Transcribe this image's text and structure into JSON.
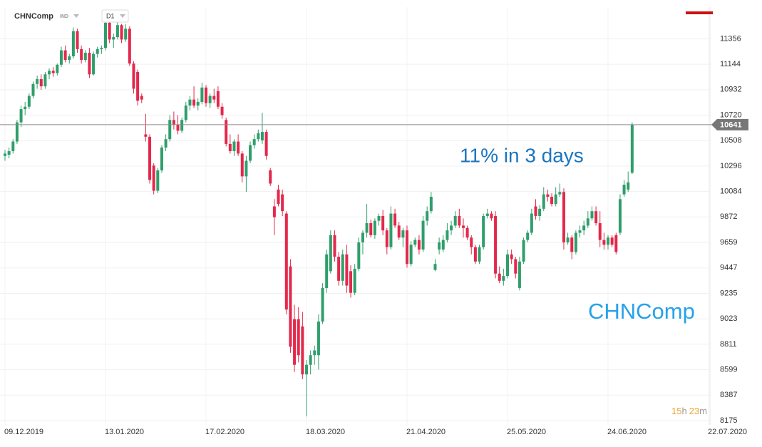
{
  "chart_data": {
    "type": "candlestick",
    "symbol": "CHNComp",
    "market": "IND",
    "timeframe": "D1",
    "annotation": "11% in 3 days",
    "watermark": "CHNComp",
    "timer_parts": [
      "15",
      "h",
      "23",
      "m"
    ],
    "last_price": 10641,
    "up_color": "#2f9e6b",
    "down_color": "#e3284b",
    "grid": true,
    "ylim": [
      8163,
      11620
    ],
    "yticks": [
      8175,
      8387,
      8599,
      8811,
      9023,
      9235,
      9447,
      9659,
      9872,
      10084,
      10296,
      10508,
      10720,
      10932,
      11144,
      11356
    ],
    "categories": [
      "09.12.2019",
      null,
      null,
      null,
      null,
      null,
      null,
      null,
      null,
      null,
      null,
      null,
      null,
      null,
      null,
      null,
      null,
      null,
      null,
      null,
      null,
      null,
      null,
      null,
      null,
      "13.01.2020",
      null,
      null,
      null,
      null,
      null,
      null,
      null,
      null,
      null,
      null,
      null,
      null,
      null,
      null,
      null,
      null,
      null,
      null,
      null,
      null,
      null,
      null,
      null,
      null,
      "17.02.2020",
      null,
      null,
      null,
      null,
      null,
      null,
      null,
      null,
      null,
      null,
      null,
      null,
      null,
      null,
      null,
      null,
      null,
      null,
      null,
      null,
      null,
      null,
      null,
      null,
      "18.03.2020",
      null,
      null,
      null,
      null,
      null,
      null,
      null,
      null,
      null,
      null,
      null,
      null,
      null,
      null,
      null,
      null,
      null,
      null,
      null,
      null,
      null,
      null,
      null,
      null,
      "21.04.2020",
      null,
      null,
      null,
      null,
      null,
      null,
      null,
      null,
      null,
      null,
      null,
      null,
      null,
      null,
      null,
      null,
      null,
      null,
      null,
      null,
      null,
      null,
      null,
      null,
      "25.05.2020",
      null,
      null,
      null,
      null,
      null,
      null,
      null,
      null,
      null,
      null,
      null,
      null,
      null,
      null,
      null,
      null,
      null,
      null,
      null,
      null,
      null,
      null,
      null,
      null,
      "24.06.2020",
      null,
      null,
      null,
      null,
      null,
      null,
      null,
      null,
      null,
      null,
      null,
      null,
      null,
      null,
      null,
      null,
      null,
      null,
      null,
      null,
      null,
      null,
      null,
      null,
      "22.07.2020"
    ],
    "open": [
      10380,
      10390,
      10420,
      10500,
      10660,
      10770,
      10790,
      10880,
      10980,
      11020,
      10960,
      11060,
      11090,
      11070,
      11140,
      11260,
      11180,
      11210,
      11420,
      11270,
      11180,
      11240,
      11060,
      11230,
      11270,
      11280,
      11490,
      11350,
      11370,
      11470,
      11350,
      11440,
      11150,
      11080,
      10880,
      10560,
      10540,
      10300,
      10090,
      10260,
      10450,
      10520,
      10680,
      10640,
      10590,
      10680,
      10800,
      10850,
      10800,
      10830,
      10950,
      10820,
      10880,
      10920,
      10790,
      10680,
      10480,
      10420,
      10500,
      10400,
      10210,
      10340,
      10470,
      10520,
      10510,
      10580,
      10260,
      9960,
      10100,
      10060,
      9900,
      9460,
      9020,
      9020,
      8960,
      8560,
      8640,
      8720,
      8720,
      9000,
      9280,
      9420,
      9720,
      9540,
      9340,
      9560,
      9420,
      9240,
      9440,
      9660,
      9740,
      9820,
      9720,
      9840,
      9880,
      9760,
      9620,
      9900,
      9800,
      9700,
      9760,
      9480,
      9640,
      9680,
      9600,
      9840,
      9920,
      9430,
      9600,
      9600,
      9680,
      9760,
      9800,
      9880,
      9800,
      9780,
      9700,
      9620,
      9500,
      9620,
      9880,
      9900,
      9880,
      9400,
      9340,
      9380,
      9560,
      9520,
      9280,
      9500,
      9680,
      9740,
      9960,
      9880,
      9940,
      10060,
      10040,
      9980,
      10060,
      10080,
      9660,
      9700,
      9580,
      9740,
      9760,
      9800,
      9860,
      9920,
      9820,
      9680,
      9640,
      9700,
      9720,
      9740,
      10060,
      10100,
      10240,
      null,
      null,
      null,
      null,
      null,
      null,
      null,
      null,
      null,
      null,
      null,
      null,
      null,
      null,
      null,
      null,
      null,
      null,
      null
    ],
    "high": [
      10430,
      10450,
      10520,
      10680,
      10800,
      10830,
      10900,
      11000,
      11050,
      11060,
      11080,
      11110,
      11120,
      11150,
      11290,
      11300,
      11230,
      11450,
      11440,
      11300,
      11260,
      11280,
      11250,
      11290,
      11300,
      11530,
      11520,
      11400,
      11500,
      11480,
      11480,
      11460,
      11170,
      11100,
      10900,
      10730,
      10560,
      10320,
      10280,
      10470,
      10560,
      10720,
      10750,
      10720,
      10700,
      10830,
      10880,
      10960,
      10860,
      10990,
      10970,
      10900,
      10940,
      10960,
      10820,
      10700,
      10560,
      10520,
      10560,
      10420,
      10380,
      10500,
      10560,
      10600,
      10740,
      10600,
      10280,
      10020,
      10140,
      10100,
      9920,
      9520,
      9140,
      9120,
      9080,
      8680,
      8760,
      8800,
      9060,
      9320,
      9600,
      9760,
      9760,
      9580,
      9600,
      9640,
      9470,
      9480,
      9700,
      9760,
      9980,
      9850,
      9860,
      9900,
      9930,
      9780,
      9960,
      9940,
      9830,
      9780,
      9800,
      9670,
      9700,
      9720,
      9880,
      9960,
      10080,
      9520,
      9700,
      9720,
      9820,
      9840,
      9920,
      9940,
      9860,
      9800,
      9720,
      9640,
      9640,
      9900,
      9940,
      9920,
      9920,
      9460,
      9440,
      9600,
      9600,
      9540,
      9540,
      9700,
      9760,
      9940,
      10020,
      9970,
      10120,
      10100,
      10070,
      10120,
      10150,
      10110,
      9740,
      9720,
      9760,
      9800,
      9840,
      9920,
      9960,
      9960,
      9920,
      9740,
      9720,
      9720,
      9740,
      10060,
      10180,
      10250,
      10660,
      null,
      null,
      null,
      null,
      null,
      null,
      null,
      null,
      null,
      null,
      null,
      null,
      null,
      null,
      null,
      null,
      null,
      null,
      null
    ],
    "low": [
      10340,
      10360,
      10400,
      10480,
      10620,
      10720,
      10770,
      10860,
      10940,
      10930,
      10940,
      11020,
      11040,
      11050,
      11120,
      11160,
      11150,
      11190,
      11240,
      11150,
      11160,
      11030,
      11050,
      11200,
      11230,
      11260,
      11320,
      11280,
      11350,
      11320,
      11330,
      11130,
      10900,
      10800,
      10820,
      10500,
      10150,
      10060,
      10070,
      10240,
      10420,
      10500,
      10600,
      10560,
      10570,
      10660,
      10760,
      10780,
      10760,
      10810,
      10790,
      10780,
      10820,
      10770,
      10690,
      10460,
      10400,
      10380,
      10380,
      10160,
      10080,
      10320,
      10440,
      10500,
      10480,
      10350,
      10130,
      9720,
      9960,
      9880,
      9060,
      8740,
      8580,
      8660,
      8520,
      8210,
      8560,
      8640,
      8600,
      8980,
      9240,
      9400,
      9500,
      9300,
      9300,
      9240,
      9200,
      9220,
      9420,
      9560,
      9700,
      9700,
      9690,
      9800,
      9720,
      9560,
      9600,
      9780,
      9680,
      9620,
      9450,
      9460,
      9620,
      9560,
      9580,
      9800,
      9900,
      9420,
      9560,
      9580,
      9660,
      9720,
      9780,
      9780,
      9700,
      9680,
      9560,
      9480,
      9480,
      9600,
      9860,
      9840,
      9360,
      9320,
      9300,
      9360,
      9480,
      9360,
      9260,
      9480,
      9660,
      9720,
      9850,
      9840,
      9920,
      10000,
      9960,
      9960,
      10040,
      9600,
      9640,
      9520,
      9560,
      9700,
      9720,
      9780,
      9840,
      9800,
      9620,
      9600,
      9600,
      9620,
      9560,
      9720,
      10040,
      10080,
      10230,
      null,
      null,
      null,
      null,
      null,
      null,
      null,
      null,
      null,
      null,
      null,
      null,
      null,
      null,
      null,
      null,
      null,
      null,
      null
    ],
    "close": [
      10400,
      10420,
      10500,
      10660,
      10770,
      10790,
      10880,
      10980,
      11020,
      10960,
      11060,
      11090,
      11070,
      11140,
      11260,
      11180,
      11210,
      11420,
      11270,
      11180,
      11240,
      11060,
      11230,
      11270,
      11280,
      11490,
      11350,
      11370,
      11470,
      11350,
      11440,
      11150,
      10940,
      10840,
      10850,
      10540,
      10180,
      10090,
      10260,
      10450,
      10520,
      10680,
      10640,
      10590,
      10680,
      10800,
      10850,
      10800,
      10830,
      10950,
      10820,
      10880,
      10850,
      10790,
      10720,
      10480,
      10420,
      10500,
      10400,
      10210,
      10340,
      10470,
      10520,
      10570,
      10580,
      10380,
      10150,
      9870,
      9980,
      9920,
      9100,
      8790,
      8640,
      8720,
      8560,
      8640,
      8720,
      8760,
      9000,
      9280,
      9560,
      9720,
      9540,
      9340,
      9560,
      9300,
      9240,
      9440,
      9660,
      9740,
      9820,
      9720,
      9840,
      9880,
      9760,
      9620,
      9900,
      9800,
      9700,
      9760,
      9480,
      9640,
      9680,
      9600,
      9840,
      9920,
      10040,
      9480,
      9660,
      9680,
      9760,
      9800,
      9880,
      9800,
      9780,
      9700,
      9620,
      9500,
      9620,
      9880,
      9900,
      9860,
      9400,
      9340,
      9380,
      9560,
      9520,
      9400,
      9500,
      9680,
      9740,
      9900,
      9880,
      9940,
      10060,
      10040,
      9980,
      10060,
      10080,
      9660,
      9700,
      9580,
      9740,
      9760,
      9800,
      9860,
      9920,
      9820,
      9680,
      9640,
      9700,
      9640,
      9580,
      10020,
      10140,
      10160,
      10641,
      null,
      null,
      null,
      null,
      null,
      null,
      null,
      null,
      null,
      null,
      null,
      null,
      null,
      null,
      null,
      null,
      null,
      null,
      null
    ]
  }
}
